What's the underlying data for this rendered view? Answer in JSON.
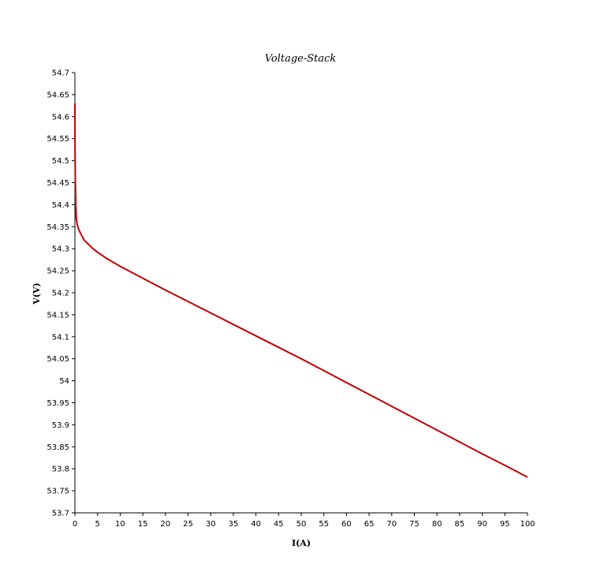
{
  "chart_data": {
    "type": "line",
    "title": "Voltage-Stack",
    "xlabel": "I(A)",
    "ylabel": "V(V)",
    "xlim": [
      0,
      100
    ],
    "ylim": [
      53.7,
      54.7
    ],
    "xticks": [
      0,
      5,
      10,
      15,
      20,
      25,
      30,
      35,
      40,
      45,
      50,
      55,
      60,
      65,
      70,
      75,
      80,
      85,
      90,
      95,
      100
    ],
    "yticks": [
      53.7,
      53.75,
      53.8,
      53.85,
      53.9,
      53.95,
      54,
      54.05,
      54.1,
      54.15,
      54.2,
      54.25,
      54.3,
      54.35,
      54.4,
      54.45,
      54.5,
      54.55,
      54.6,
      54.65,
      54.7
    ],
    "xtick_labels": [
      "0",
      "5",
      "10",
      "15",
      "20",
      "25",
      "30",
      "35",
      "40",
      "45",
      "50",
      "55",
      "60",
      "65",
      "70",
      "75",
      "80",
      "85",
      "90",
      "95",
      "100"
    ],
    "ytick_labels": [
      "53.7",
      "53.75",
      "53.8",
      "53.85",
      "53.9",
      "53.95",
      "54",
      "54.05",
      "54.1",
      "54.15",
      "54.2",
      "54.25",
      "54.3",
      "54.35",
      "54.4",
      "54.45",
      "54.5",
      "54.55",
      "54.6",
      "54.65",
      "54.7"
    ],
    "grid": false,
    "series": [
      {
        "color": "#c00000",
        "x": [
          0,
          0.02,
          0.05,
          0.1,
          0.2,
          0.3,
          0.5,
          0.8,
          1,
          1.5,
          2,
          3,
          4,
          5,
          7,
          10,
          15,
          20,
          25,
          30,
          35,
          40,
          45,
          50,
          55,
          60,
          65,
          70,
          75,
          80,
          85,
          90,
          95,
          100
        ],
        "y": [
          54.63,
          54.55,
          54.5,
          54.45,
          54.4,
          54.37,
          54.355,
          54.345,
          54.34,
          54.33,
          54.32,
          54.31,
          54.3,
          54.292,
          54.278,
          54.26,
          54.233,
          54.206,
          54.18,
          54.154,
          54.128,
          54.102,
          54.076,
          54.05,
          54.023,
          53.996,
          53.969,
          53.942,
          53.915,
          53.888,
          53.861,
          53.834,
          53.808,
          53.781
        ]
      }
    ]
  }
}
